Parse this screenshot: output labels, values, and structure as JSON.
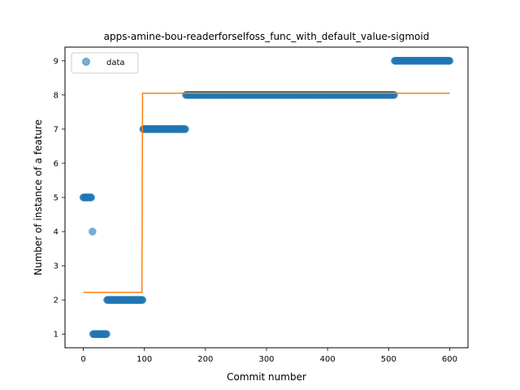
{
  "chart_data": {
    "type": "scatter",
    "title": "apps-amine-bou-readerforselfoss_func_with_default_value-sigmoid",
    "xlabel": "Commit number",
    "ylabel": "Number of instance of a feature",
    "xlim": [
      -30,
      630
    ],
    "ylim": [
      0.6,
      9.4
    ],
    "xticks": [
      0,
      100,
      200,
      300,
      400,
      500,
      600
    ],
    "yticks": [
      1,
      2,
      3,
      4,
      5,
      6,
      7,
      8,
      9
    ],
    "grid": false,
    "legend": {
      "position": "top-left",
      "entries": [
        "data"
      ]
    },
    "series": [
      {
        "name": "data",
        "kind": "scatter",
        "color": "#1f77b4",
        "runs": [
          {
            "x_start": 0,
            "x_end": 13,
            "y": 5
          },
          {
            "x_start": 15,
            "x_end": 15,
            "y": 4
          },
          {
            "x_start": 16,
            "x_end": 38,
            "y": 1
          },
          {
            "x_start": 39,
            "x_end": 97,
            "y": 2
          },
          {
            "x_start": 98,
            "x_end": 167,
            "y": 7
          },
          {
            "x_start": 168,
            "x_end": 509,
            "y": 8
          },
          {
            "x_start": 510,
            "x_end": 600,
            "y": 9
          }
        ]
      },
      {
        "name": "",
        "kind": "line",
        "color": "#ff7f0e",
        "x": [
          0,
          96,
          97,
          600
        ],
        "y": [
          2.22,
          2.22,
          8.05,
          8.05
        ]
      }
    ]
  }
}
